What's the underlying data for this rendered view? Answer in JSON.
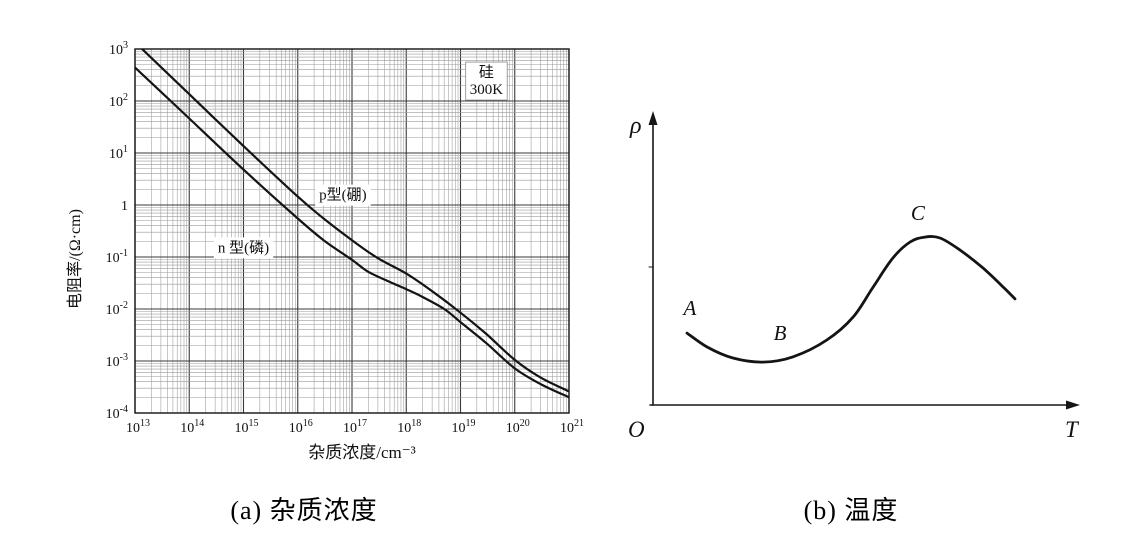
{
  "captions": {
    "a": "(a) 杂质浓度",
    "b": "(b) 温度"
  },
  "chart_data": [
    {
      "type": "line",
      "description": "Silicon resistivity vs impurity concentration at 300K (log-log Irvin curves)",
      "xlabel": "杂质浓度/cm⁻³",
      "ylabel": "电阻率/(Ω·cm)",
      "x_scale": "log",
      "y_scale": "log",
      "xlim": [
        10000000000000.0,
        1e+21
      ],
      "ylim": [
        0.0001,
        1000.0
      ],
      "x_tick_exponents": [
        13,
        14,
        15,
        16,
        17,
        18,
        19,
        20,
        21
      ],
      "y_tick_exponents": [
        3,
        2,
        1,
        0,
        -1,
        -2,
        -3,
        -4
      ],
      "grid": "log minor gridlines both axes",
      "legend_position": "inline labels on curves",
      "annotation": {
        "lines": [
          "硅",
          "300K"
        ],
        "x": 3e+19,
        "y": 250
      },
      "series": [
        {
          "name": "p型(硼)",
          "label_at": {
            "x": 6.8e+16,
            "y": 1.6
          },
          "points": [
            [
              10000000000000.0,
              1350
            ],
            [
              100000000000000.0,
              135
            ],
            [
              1000000000000000.0,
              13.6
            ],
            [
              1e+16,
              1.45
            ],
            [
              3e+16,
              0.55
            ],
            [
              1e+17,
              0.21
            ],
            [
              3e+17,
              0.095
            ],
            [
              1e+18,
              0.048
            ],
            [
              3e+18,
              0.022
            ],
            [
              1e+19,
              0.0085
            ],
            [
              3e+19,
              0.0033
            ],
            [
              1e+20,
              0.00105
            ],
            [
              3e+20,
              0.00048
            ],
            [
              1e+21,
              0.00026
            ]
          ]
        },
        {
          "name": "n 型(磷)",
          "label_at": {
            "x": 1000000000000000.0,
            "y": 0.155
          },
          "points": [
            [
              10000000000000.0,
              440
            ],
            [
              100000000000000.0,
              46
            ],
            [
              1000000000000000.0,
              4.8
            ],
            [
              1e+16,
              0.55
            ],
            [
              3e+16,
              0.21
            ],
            [
              1e+17,
              0.088
            ],
            [
              2e+17,
              0.052
            ],
            [
              5e+17,
              0.033
            ],
            [
              1e+18,
              0.024
            ],
            [
              2e+18,
              0.017
            ],
            [
              5e+18,
              0.01
            ],
            [
              1e+19,
              0.0056
            ],
            [
              3e+19,
              0.0022
            ],
            [
              1e+20,
              0.00072
            ],
            [
              3e+20,
              0.00036
            ],
            [
              1e+21,
              0.0002
            ]
          ]
        }
      ]
    },
    {
      "type": "line-sketch",
      "description": "Qualitative resistivity vs temperature curve with minimum at B and maximum at C",
      "xlabel": "T",
      "ylabel": "ρ",
      "origin_label": "O",
      "axes": "arrowed axes, no ticks, no grid",
      "curve_normalized": [
        [
          0.083,
          0.248
        ],
        [
          0.132,
          0.2
        ],
        [
          0.195,
          0.162
        ],
        [
          0.268,
          0.148
        ],
        [
          0.341,
          0.166
        ],
        [
          0.424,
          0.224
        ],
        [
          0.488,
          0.303
        ],
        [
          0.537,
          0.407
        ],
        [
          0.585,
          0.507
        ],
        [
          0.627,
          0.562
        ],
        [
          0.663,
          0.579
        ],
        [
          0.7,
          0.576
        ],
        [
          0.749,
          0.534
        ],
        [
          0.805,
          0.472
        ],
        [
          0.854,
          0.407
        ],
        [
          0.883,
          0.366
        ]
      ],
      "point_labels": [
        {
          "text": "A",
          "x": 0.09,
          "y": 0.31
        },
        {
          "text": "B",
          "x": 0.31,
          "y": 0.224
        },
        {
          "text": "C",
          "x": 0.646,
          "y": 0.638
        }
      ]
    }
  ],
  "style": {
    "curve_color": "#141414",
    "grid_minor_color": "#9a9a9a",
    "grid_major_color": "#3a3a3a",
    "frame_color": "#111111"
  }
}
